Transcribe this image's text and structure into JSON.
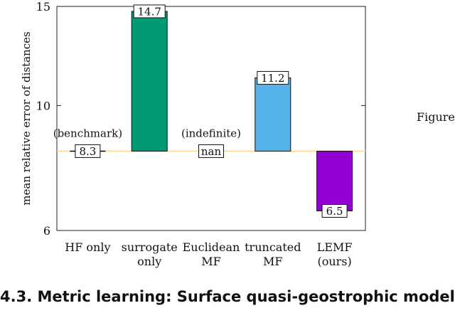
{
  "chart_data": {
    "type": "bar",
    "ylabel": "mean relative error of distances",
    "yscale": "log",
    "ylim": [
      6,
      15
    ],
    "yticks": [
      6,
      10,
      15
    ],
    "categories": [
      {
        "lines": [
          "HF only"
        ]
      },
      {
        "lines": [
          "surrogate",
          "only"
        ]
      },
      {
        "lines": [
          "Euclidean",
          "MF"
        ]
      },
      {
        "lines": [
          "truncated",
          "MF"
        ]
      },
      {
        "lines": [
          "LEMF",
          "(ours)"
        ]
      }
    ],
    "values": [
      8.3,
      14.7,
      null,
      11.2,
      6.5
    ],
    "value_labels": [
      "8.3",
      "14.7",
      "nan",
      "11.2",
      "6.5"
    ],
    "colors": [
      "#000000",
      "#009a72",
      "#000000",
      "#56b4e9",
      "#9400d3"
    ],
    "annotations": [
      "(benchmark)",
      "",
      "(indefinite)",
      "",
      ""
    ],
    "reference_line": {
      "value": 8.3,
      "color": "#f5d98c"
    }
  },
  "side_note": "Figure",
  "section_heading": "4.3.  Metric learning:  Surface quasi-geostrophic model"
}
